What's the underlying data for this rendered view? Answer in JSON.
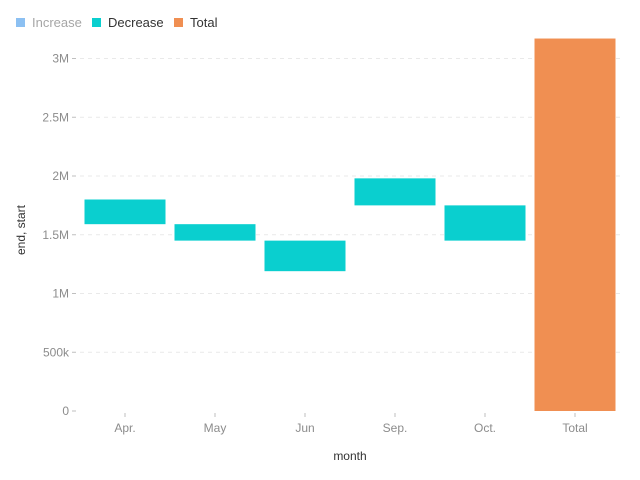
{
  "chart_data": {
    "type": "bar",
    "subtype": "waterfall",
    "xlabel": "month",
    "ylabel": "end, start",
    "ylim": [
      0,
      3200000
    ],
    "yticks": [
      {
        "value": 0,
        "label": "0"
      },
      {
        "value": 500000,
        "label": "500k"
      },
      {
        "value": 1000000,
        "label": "1M"
      },
      {
        "value": 1500000,
        "label": "1.5M"
      },
      {
        "value": 2000000,
        "label": "2M"
      },
      {
        "value": 2500000,
        "label": "2.5M"
      },
      {
        "value": 3000000,
        "label": "3M"
      }
    ],
    "grid": true,
    "legend_position": "top-left",
    "legend": [
      {
        "label": "Increase",
        "color": "#8cc0f2",
        "inactive": true
      },
      {
        "label": "Decrease",
        "color": "#0acfcf",
        "inactive": false
      },
      {
        "label": "Total",
        "color": "#f08f52",
        "inactive": false
      }
    ],
    "categories": [
      "Apr.",
      "May",
      "Jun",
      "Sep.",
      "Oct.",
      "Total"
    ],
    "bars": [
      {
        "category": "Apr.",
        "start": 1800000,
        "end": 1590000,
        "kind": "Decrease"
      },
      {
        "category": "May",
        "start": 1590000,
        "end": 1450000,
        "kind": "Decrease"
      },
      {
        "category": "Jun",
        "start": 1450000,
        "end": 1190000,
        "kind": "Decrease"
      },
      {
        "category": "Sep.",
        "start": 1980000,
        "end": 1750000,
        "kind": "Decrease"
      },
      {
        "category": "Oct.",
        "start": 1750000,
        "end": 1450000,
        "kind": "Decrease"
      },
      {
        "category": "Total",
        "start": 0,
        "end": 3170000,
        "kind": "Total"
      }
    ]
  }
}
